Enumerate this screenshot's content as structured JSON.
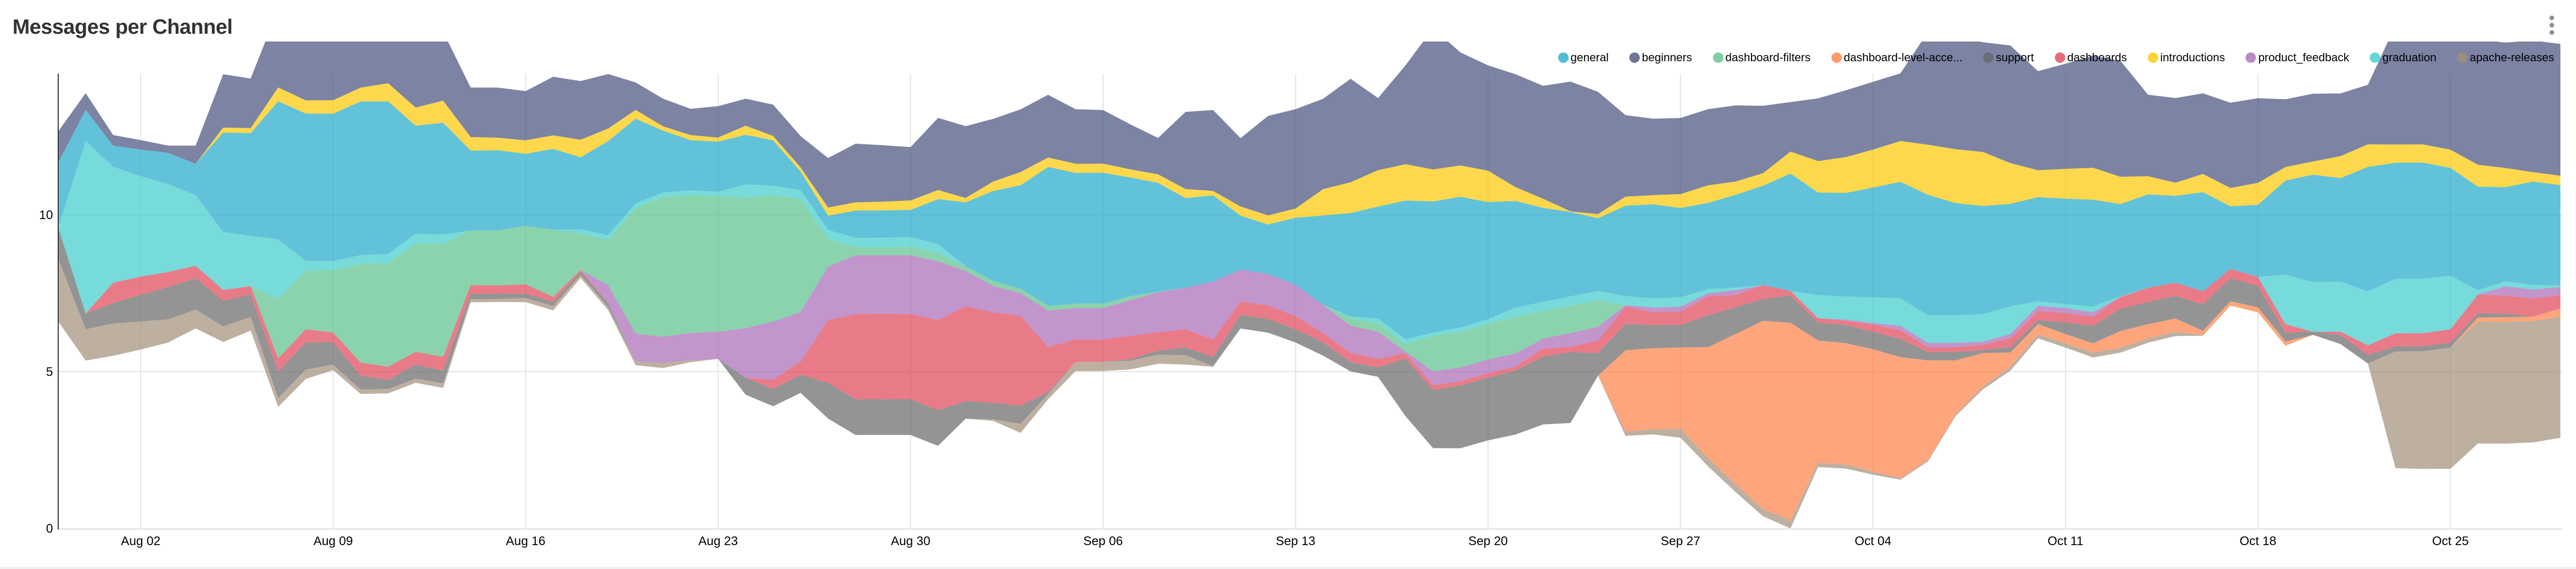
{
  "header": {
    "title": "Messages per Channel",
    "menu_icon": "kebab-menu-icon"
  },
  "chart_data": {
    "type": "area",
    "stacking": "stream",
    "title": "Messages per Channel",
    "xlabel": "",
    "ylabel": "",
    "ylim": [
      0,
      14.5
    ],
    "yticks": [
      "0",
      "5",
      "10"
    ],
    "grid": true,
    "legend_position": "top-right",
    "xticks": [
      "Aug 02",
      "Aug 09",
      "Aug 16",
      "Aug 23",
      "Aug 30",
      "Sep 06",
      "Sep 13",
      "Sep 20",
      "Sep 27",
      "Oct 04",
      "Oct 11",
      "Oct 18",
      "Oct 25"
    ],
    "x": [
      "Jul 30",
      "Jul 31",
      "Aug 01",
      "Aug 02",
      "Aug 03",
      "Aug 04",
      "Aug 05",
      "Aug 06",
      "Aug 07",
      "Aug 08",
      "Aug 09",
      "Aug 10",
      "Aug 11",
      "Aug 12",
      "Aug 13",
      "Aug 14",
      "Aug 15",
      "Aug 16",
      "Aug 17",
      "Aug 18",
      "Aug 19",
      "Aug 20",
      "Aug 21",
      "Aug 22",
      "Aug 23",
      "Aug 24",
      "Aug 25",
      "Aug 26",
      "Aug 27",
      "Aug 28",
      "Aug 29",
      "Aug 30",
      "Aug 31",
      "Sep 01",
      "Sep 02",
      "Sep 03",
      "Sep 04",
      "Sep 05",
      "Sep 06",
      "Sep 07",
      "Sep 08",
      "Sep 09",
      "Sep 10",
      "Sep 11",
      "Sep 12",
      "Sep 13",
      "Sep 14",
      "Sep 15",
      "Sep 16",
      "Sep 17",
      "Sep 18",
      "Sep 19",
      "Sep 20",
      "Sep 21",
      "Sep 22",
      "Sep 23",
      "Sep 24",
      "Sep 25",
      "Sep 26",
      "Sep 27",
      "Sep 28",
      "Sep 29",
      "Sep 30",
      "Oct 01",
      "Oct 02",
      "Oct 03",
      "Oct 04",
      "Oct 05",
      "Oct 06",
      "Oct 07",
      "Oct 08",
      "Oct 09",
      "Oct 10",
      "Oct 11",
      "Oct 12",
      "Oct 13",
      "Oct 14",
      "Oct 15",
      "Oct 16",
      "Oct 17",
      "Oct 18",
      "Oct 19",
      "Oct 20",
      "Oct 21",
      "Oct 22",
      "Oct 23",
      "Oct 24",
      "Oct 25",
      "Oct 26",
      "Oct 27",
      "Oct 28",
      "Oct 29"
    ],
    "series": [
      {
        "name": "general",
        "color": "#1FA8C9",
        "values": [
          2.06,
          1.0,
          0.67,
          0.85,
          1.0,
          1.0,
          3.17,
          3.28,
          4.4,
          4.7,
          4.7,
          4.9,
          4.86,
          3.45,
          3.57,
          2.55,
          2.55,
          2.3,
          2.58,
          2.3,
          3.0,
          2.7,
          1.97,
          1.6,
          1.6,
          1.58,
          1.45,
          0.59,
          0.45,
          0.87,
          0.87,
          0.87,
          1.43,
          2.04,
          2.87,
          3.3,
          4.43,
          4.17,
          4.17,
          3.78,
          3.47,
          2.86,
          2.75,
          1.72,
          1.58,
          2.14,
          2.85,
          3.3,
          3.57,
          4.43,
          4.18,
          4.17,
          3.74,
          3.4,
          3.0,
          2.69,
          2.32,
          2.88,
          3.0,
          2.85,
          2.75,
          2.96,
          3.17,
          3.74,
          3.27,
          3.3,
          3.5,
          3.72,
          3.84,
          3.58,
          3.45,
          3.27,
          3.32,
          3.36,
          3.41,
          2.94,
          2.98,
          2.77,
          3.16,
          2.0,
          2.3,
          3.0,
          3.43,
          3.3,
          3.97,
          3.7,
          3.7,
          3.44,
          3.3,
          3.0,
          3.3,
          3.2
        ]
      },
      {
        "name": "beginners",
        "color": "#454E7C",
        "values": [
          1.0,
          0.53,
          0.34,
          0.3,
          0.23,
          0.58,
          1.7,
          1.58,
          2.5,
          3.0,
          3.0,
          2.6,
          2.4,
          2.4,
          2.2,
          1.58,
          1.6,
          1.57,
          1.87,
          1.87,
          1.74,
          0.88,
          0.88,
          0.84,
          1.0,
          0.86,
          1.0,
          1.0,
          1.58,
          1.87,
          1.8,
          1.7,
          2.3,
          2.29,
          2.0,
          2.0,
          2.0,
          1.74,
          1.71,
          1.43,
          1.16,
          2.46,
          2.58,
          2.18,
          3.17,
          3.17,
          2.88,
          3.3,
          2.3,
          3.15,
          4.5,
          3.6,
          3.36,
          3.6,
          3.6,
          4.14,
          3.9,
          2.6,
          2.44,
          2.43,
          2.43,
          2.43,
          2.15,
          1.58,
          2.0,
          2.13,
          2.16,
          2.16,
          3.6,
          3.6,
          3.5,
          3.75,
          3.16,
          3.35,
          3.57,
          3.7,
          2.6,
          2.7,
          2.57,
          2.72,
          2.7,
          2.16,
          2.16,
          2.0,
          1.9,
          3.8,
          3.8,
          4.0,
          4.0,
          4.0,
          4.2,
          4.2
        ]
      },
      {
        "name": "dashboard-filters",
        "color": "#5AC189",
        "values": [
          0,
          0,
          0,
          0,
          0,
          0,
          0,
          0,
          1.9,
          1.86,
          2.0,
          3.15,
          3.3,
          3.46,
          3.6,
          1.74,
          1.76,
          1.86,
          2.14,
          1.16,
          1.45,
          4.0,
          4.46,
          4.4,
          4.33,
          4.17,
          4.03,
          3.6,
          0.88,
          0.26,
          0.26,
          0.28,
          0.26,
          0.15,
          0.16,
          0.14,
          0.15,
          0.14,
          0.14,
          0.13,
          0.02,
          0,
          0,
          0,
          0,
          0,
          0,
          0.24,
          0.27,
          0.24,
          1.14,
          1.13,
          1.14,
          1.16,
          0.88,
          0.87,
          0.84,
          0,
          0,
          0,
          0,
          0,
          0,
          0,
          0,
          0,
          0,
          0,
          0,
          0,
          0,
          0,
          0,
          0,
          0,
          0,
          0,
          0,
          0,
          0,
          0,
          0,
          0,
          0,
          0,
          0,
          0,
          0,
          0,
          0,
          0,
          0
        ]
      },
      {
        "name": "dashboard-level-acce...",
        "color": "#FF7F44",
        "values": [
          0,
          0,
          0,
          0,
          0,
          0,
          0,
          0,
          0,
          0,
          0,
          0,
          0,
          0,
          0,
          0,
          0,
          0,
          0,
          0,
          0,
          0,
          0,
          0,
          0,
          0,
          0,
          0,
          0,
          0,
          0,
          0,
          0,
          0,
          0,
          0,
          0,
          0,
          0,
          0,
          0,
          0,
          0,
          0,
          0,
          0,
          0,
          0,
          0,
          0,
          0,
          0,
          0,
          0,
          0,
          0,
          0,
          2.59,
          2.59,
          2.59,
          3.54,
          4.78,
          6.0,
          6.3,
          3.9,
          3.87,
          3.9,
          3.86,
          3.17,
          1.73,
          1.06,
          0.45,
          0.32,
          0.3,
          0.29,
          0.53,
          0.45,
          0.42,
          0.14,
          0.14,
          0.16,
          0.14,
          0,
          0,
          0,
          0,
          0,
          0,
          0.14,
          0.15,
          0.14,
          0.26
        ]
      },
      {
        "name": "support",
        "color": "#666666",
        "values": [
          1.0,
          0.5,
          0.65,
          0.85,
          1.03,
          1.0,
          0.82,
          0.72,
          0.85,
          0.87,
          0.72,
          0.44,
          0.29,
          0.45,
          0.4,
          0.17,
          0.17,
          0.14,
          0.13,
          0.1,
          0.12,
          0,
          0,
          0,
          0,
          0.54,
          0.55,
          0.58,
          1.14,
          1.14,
          1.14,
          1.14,
          1.14,
          0.56,
          0.53,
          0.58,
          0.07,
          0,
          0,
          0.05,
          0.13,
          0.25,
          0.29,
          0.44,
          0.44,
          0.42,
          0.42,
          0.29,
          0.3,
          1.85,
          1.86,
          2.0,
          2.0,
          2.04,
          2.16,
          2.27,
          0.72,
          0.84,
          0.74,
          0.72,
          1.02,
          0.85,
          0.7,
          0.87,
          0.57,
          0.58,
          0.56,
          0.58,
          0.27,
          0.27,
          0.1,
          0.16,
          0.13,
          0.37,
          0.56,
          0.71,
          0.71,
          0.72,
          0.84,
          0.73,
          0.69,
          0.28,
          0.1,
          0.29,
          0.28,
          0.16,
          0.16,
          0.16,
          0.13,
          0.12,
          0,
          0
        ]
      },
      {
        "name": "dashboards",
        "color": "#E04355",
        "values": [
          0,
          0,
          0.65,
          0.58,
          0.48,
          0.4,
          0.34,
          0.26,
          0.42,
          0.42,
          0.3,
          0.42,
          0.42,
          0.41,
          0.44,
          0.28,
          0.26,
          0.3,
          0.16,
          0.05,
          0,
          0,
          0,
          0,
          0,
          0,
          0.3,
          0.42,
          2.0,
          2.72,
          2.72,
          2.72,
          2.87,
          3.03,
          2.88,
          2.86,
          1.44,
          0.72,
          0.72,
          0.74,
          0.59,
          0.58,
          0.56,
          0.42,
          0.43,
          0.42,
          0.3,
          0.3,
          0.27,
          0.16,
          0.15,
          0.14,
          0.14,
          0.13,
          0.26,
          0.16,
          0.4,
          0.55,
          0.42,
          0.42,
          0.6,
          0.39,
          0.44,
          0.15,
          0.14,
          0.14,
          0.23,
          0.28,
          0.15,
          0.15,
          0.16,
          0.29,
          0.3,
          0.3,
          0.29,
          0.38,
          0.45,
          0.42,
          0.42,
          0.3,
          0.28,
          0.27,
          0,
          0.1,
          0.3,
          0.42,
          0.42,
          0.42,
          0.6,
          0.57,
          0.58,
          0.42
        ]
      },
      {
        "name": "introductions",
        "color": "#FCC700",
        "values": [
          0,
          0,
          0,
          0,
          0,
          0,
          0.16,
          0.16,
          0.44,
          0.42,
          0.43,
          0.44,
          0.58,
          0.58,
          0.7,
          0.43,
          0.4,
          0.43,
          0.43,
          0.56,
          0.4,
          0.28,
          0.14,
          0.16,
          0.13,
          0.29,
          0.14,
          0.13,
          0.26,
          0.26,
          0.28,
          0.3,
          0.29,
          0.14,
          0.3,
          0.42,
          0.3,
          0.29,
          0.29,
          0.26,
          0.27,
          0.29,
          0.14,
          0.29,
          0.29,
          0.29,
          0.84,
          0.98,
          1.16,
          1.16,
          1.02,
          1.0,
          1.0,
          0.44,
          0.29,
          0.02,
          0.13,
          0.29,
          0.29,
          0.44,
          0.56,
          0.42,
          0.4,
          0.7,
          1.0,
          1.14,
          1.21,
          1.3,
          1.6,
          1.72,
          1.72,
          1.3,
          0.86,
          0.95,
          1.02,
          0.87,
          0.58,
          0.42,
          0.58,
          0.58,
          0.7,
          0.43,
          0.42,
          0.7,
          0.72,
          0.58,
          0.58,
          0.58,
          0.7,
          0.61,
          0.3,
          0.3
        ]
      },
      {
        "name": "product_feedback",
        "color": "#A868B7",
        "values": [
          0,
          0,
          0,
          0,
          0,
          0,
          0,
          0,
          0,
          0,
          0,
          0,
          0,
          0,
          0,
          0,
          0,
          0,
          0,
          0,
          0.58,
          0.88,
          0.84,
          0.87,
          0.87,
          1.58,
          1.85,
          1.58,
          1.71,
          1.87,
          1.87,
          1.87,
          1.88,
          1.12,
          0.84,
          0.73,
          1.16,
          1.0,
          1.0,
          1.14,
          1.27,
          1.32,
          1.85,
          1.02,
          1.0,
          1.0,
          0.9,
          0.87,
          0.87,
          0.05,
          0.44,
          0.44,
          0.44,
          0.42,
          0.32,
          0.44,
          0.44,
          0.05,
          0.14,
          0.16,
          0.1,
          0.16,
          0,
          0,
          0,
          0.03,
          0.05,
          0.14,
          0.14,
          0.14,
          0.1,
          0.14,
          0.16,
          0.16,
          0.14,
          0,
          0,
          0,
          0,
          0,
          0,
          0,
          0,
          0,
          0,
          0,
          0,
          0,
          0,
          0.3,
          0.29,
          0.26
        ]
      },
      {
        "name": "graduation",
        "color": "#3CCCCB",
        "values": [
          0,
          5.5,
          3.7,
          3.2,
          2.8,
          2.25,
          1.85,
          1.6,
          1.9,
          0.32,
          0.28,
          0.28,
          0.3,
          0.3,
          0.3,
          0,
          0,
          0,
          0,
          0.14,
          0.14,
          0.15,
          0.14,
          0.15,
          0.13,
          0.42,
          0.3,
          0.29,
          0.29,
          0.3,
          0.3,
          0.3,
          0.29,
          0,
          0,
          0,
          0,
          0,
          0,
          0,
          0,
          0,
          0,
          0,
          0,
          0,
          0,
          0.05,
          0.15,
          0.15,
          0.1,
          0.14,
          0.14,
          0.3,
          0.29,
          0.3,
          0.3,
          0.29,
          0.29,
          0.3,
          0.13,
          0.08,
          0,
          0,
          0.74,
          0.74,
          0.82,
          0.87,
          0.88,
          0.88,
          0.88,
          0.88,
          0.14,
          0.13,
          0.18,
          0.02,
          0,
          0,
          0,
          0,
          0,
          1.58,
          1.58,
          1.6,
          1.72,
          1.74,
          1.74,
          1.71,
          0.14,
          0.16,
          0.14,
          0.05
        ]
      },
      {
        "name": "apache-releases",
        "color": "#A38F79",
        "values": [
          2.0,
          1.0,
          1.03,
          0.9,
          0.74,
          0.6,
          0.5,
          0.44,
          0.28,
          0.3,
          0.18,
          0.14,
          0.14,
          0.13,
          0.15,
          0.1,
          0.1,
          0.13,
          0.14,
          0.1,
          0.1,
          0.13,
          0.16,
          0.06,
          0,
          0,
          0,
          0,
          0,
          0,
          0,
          0,
          0,
          0,
          0.05,
          0.29,
          0.16,
          0.29,
          0.29,
          0.28,
          0.29,
          0.3,
          0.02,
          0,
          0,
          0,
          0,
          0,
          0,
          0,
          0,
          0,
          0,
          0,
          0,
          0,
          0,
          0.14,
          0.16,
          0.29,
          0.26,
          0.26,
          0.23,
          0.26,
          0.14,
          0.13,
          0.1,
          0.05,
          0.05,
          0.05,
          0.1,
          0.13,
          0.13,
          0.13,
          0.16,
          0.16,
          0.14,
          0.14,
          0.02,
          0,
          0,
          0,
          0,
          0,
          0,
          3.72,
          3.75,
          3.87,
          3.88,
          3.88,
          3.87,
          3.87
        ]
      }
    ]
  }
}
